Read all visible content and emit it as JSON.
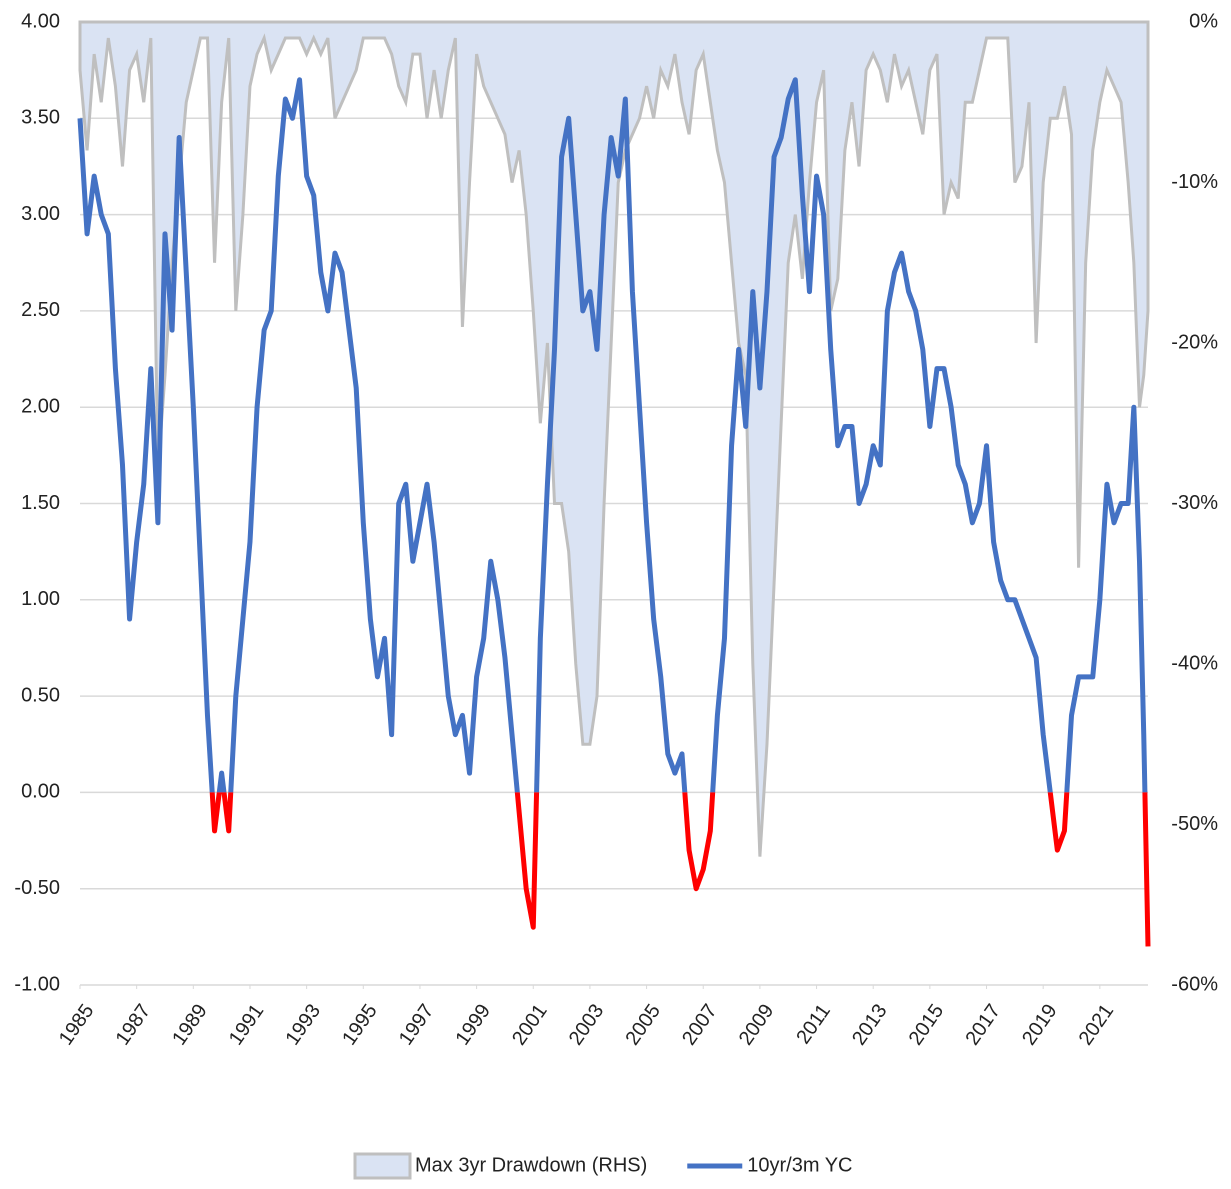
{
  "chart_data": {
    "type": "line",
    "x": [
      1985,
      1985.25,
      1985.5,
      1985.75,
      1986,
      1986.25,
      1986.5,
      1986.75,
      1987,
      1987.25,
      1987.5,
      1987.75,
      1988,
      1988.25,
      1988.5,
      1988.75,
      1989,
      1989.25,
      1989.5,
      1989.75,
      1990,
      1990.25,
      1990.5,
      1990.75,
      1991,
      1991.25,
      1991.5,
      1991.75,
      1992,
      1992.25,
      1992.5,
      1992.75,
      1993,
      1993.25,
      1993.5,
      1993.75,
      1994,
      1994.25,
      1994.5,
      1994.75,
      1995,
      1995.25,
      1995.5,
      1995.75,
      1996,
      1996.25,
      1996.5,
      1996.75,
      1997,
      1997.25,
      1997.5,
      1997.75,
      1998,
      1998.25,
      1998.5,
      1998.75,
      1999,
      1999.25,
      1999.5,
      1999.75,
      2000,
      2000.25,
      2000.5,
      2000.75,
      2001,
      2001.25,
      2001.5,
      2001.75,
      2002,
      2002.25,
      2002.5,
      2002.75,
      2003,
      2003.25,
      2003.5,
      2003.75,
      2004,
      2004.25,
      2004.5,
      2004.75,
      2005,
      2005.25,
      2005.5,
      2005.75,
      2006,
      2006.25,
      2006.5,
      2006.75,
      2007,
      2007.25,
      2007.5,
      2007.75,
      2008,
      2008.25,
      2008.5,
      2008.75,
      2009,
      2009.25,
      2009.5,
      2009.75,
      2010,
      2010.25,
      2010.5,
      2010.75,
      2011,
      2011.25,
      2011.5,
      2011.75,
      2012,
      2012.25,
      2012.5,
      2012.75,
      2013,
      2013.25,
      2013.5,
      2013.75,
      2014,
      2014.25,
      2014.5,
      2014.75,
      2015,
      2015.25,
      2015.5,
      2015.75,
      2016,
      2016.25,
      2016.5,
      2016.75,
      2017,
      2017.25,
      2017.5,
      2017.75,
      2018,
      2018.25,
      2018.5,
      2018.75,
      2019,
      2019.25,
      2019.5,
      2019.75,
      2020,
      2020.25,
      2020.5,
      2020.75,
      2021,
      2021.25,
      2021.5,
      2021.75,
      2022,
      2022.2,
      2022.4,
      2022.55,
      2022.7
    ],
    "series": [
      {
        "name": "Max 3yr Drawdown (RHS)",
        "axis": "y2",
        "kind": "area",
        "color": "#dae3f3",
        "stroke": "#bfbfbf",
        "values": [
          -3,
          -8,
          -2,
          -5,
          -1,
          -4,
          -9,
          -3,
          -2,
          -5,
          -1,
          -28,
          -22,
          -15,
          -10,
          -5,
          -3,
          -1,
          -1,
          -15,
          -5,
          -1,
          -18,
          -12,
          -4,
          -2,
          -1,
          -3,
          -2,
          -1,
          -1,
          -1,
          -2,
          -1,
          -2,
          -1,
          -6,
          -5,
          -4,
          -3,
          -1,
          -1,
          -1,
          -1,
          -2,
          -4,
          -5,
          -2,
          -2,
          -6,
          -3,
          -6,
          -3,
          -1,
          -19,
          -10,
          -2,
          -4,
          -5,
          -6,
          -7,
          -10,
          -8,
          -12,
          -18,
          -25,
          -20,
          -30,
          -30,
          -33,
          -40,
          -45,
          -45,
          -42,
          -30,
          -20,
          -10,
          -8,
          -7,
          -6,
          -4,
          -6,
          -3,
          -4,
          -2,
          -5,
          -7,
          -3,
          -2,
          -5,
          -8,
          -10,
          -15,
          -20,
          -22,
          -40,
          -52,
          -45,
          -35,
          -25,
          -15,
          -12,
          -16,
          -10,
          -5,
          -3,
          -18,
          -16,
          -8,
          -5,
          -9,
          -3,
          -2,
          -3,
          -5,
          -2,
          -4,
          -3,
          -5,
          -7,
          -3,
          -2,
          -12,
          -10,
          -11,
          -5,
          -5,
          -3,
          -1,
          -1,
          -1,
          -1,
          -10,
          -9,
          -5,
          -20,
          -10,
          -6,
          -6,
          -4,
          -7,
          -34,
          -15,
          -8,
          -5,
          -3,
          -4,
          -5,
          -10,
          -15,
          -24,
          -22,
          -18
        ]
      },
      {
        "name": "10yr/3m YC",
        "axis": "y",
        "kind": "line",
        "color": "#4472c4",
        "negative_color": "#ff0000",
        "values": [
          3.5,
          2.9,
          3.2,
          3.0,
          2.9,
          2.2,
          1.7,
          0.9,
          1.3,
          1.6,
          2.2,
          1.4,
          2.9,
          2.4,
          3.4,
          2.7,
          2.0,
          1.2,
          0.4,
          -0.2,
          0.1,
          -0.2,
          0.5,
          0.9,
          1.3,
          2.0,
          2.4,
          2.5,
          3.2,
          3.6,
          3.5,
          3.7,
          3.2,
          3.1,
          2.7,
          2.5,
          2.8,
          2.7,
          2.4,
          2.1,
          1.4,
          0.9,
          0.6,
          0.8,
          0.3,
          1.5,
          1.6,
          1.2,
          1.4,
          1.6,
          1.3,
          0.9,
          0.5,
          0.3,
          0.4,
          0.1,
          0.6,
          0.8,
          1.2,
          1.0,
          0.7,
          0.3,
          -0.1,
          -0.5,
          -0.7,
          0.8,
          1.6,
          2.3,
          3.3,
          3.5,
          3.0,
          2.5,
          2.6,
          2.3,
          3.0,
          3.4,
          3.2,
          3.6,
          2.6,
          2.0,
          1.4,
          0.9,
          0.6,
          0.2,
          0.1,
          0.2,
          -0.3,
          -0.5,
          -0.4,
          -0.2,
          0.4,
          0.8,
          1.8,
          2.3,
          1.9,
          2.6,
          2.1,
          2.6,
          3.3,
          3.4,
          3.6,
          3.7,
          3.1,
          2.6,
          3.2,
          3.0,
          2.3,
          1.8,
          1.9,
          1.9,
          1.5,
          1.6,
          1.8,
          1.7,
          2.5,
          2.7,
          2.8,
          2.6,
          2.5,
          2.3,
          1.9,
          2.2,
          2.2,
          2.0,
          1.7,
          1.6,
          1.4,
          1.5,
          1.8,
          1.3,
          1.1,
          1.0,
          1.0,
          0.9,
          0.8,
          0.7,
          0.3,
          0.0,
          -0.3,
          -0.2,
          0.4,
          0.6,
          0.6,
          0.6,
          1.0,
          1.6,
          1.4,
          1.5,
          1.5,
          2.0,
          1.2,
          0.3,
          -0.8
        ]
      }
    ],
    "xlim": [
      1985,
      2022.7
    ],
    "xticks": [
      1985,
      1987,
      1989,
      1991,
      1993,
      1995,
      1997,
      1999,
      2001,
      2003,
      2005,
      2007,
      2009,
      2011,
      2013,
      2015,
      2017,
      2019,
      2021
    ],
    "ylim": [
      -1,
      4
    ],
    "yticks": [
      {
        "value": 4,
        "label": "4.00"
      },
      {
        "value": 3.5,
        "label": "3.50"
      },
      {
        "value": 3,
        "label": "3.00"
      },
      {
        "value": 2.5,
        "label": "2.50"
      },
      {
        "value": 2,
        "label": "2.00"
      },
      {
        "value": 1.5,
        "label": "1.50"
      },
      {
        "value": 1,
        "label": "1.00"
      },
      {
        "value": 0.5,
        "label": "0.50"
      },
      {
        "value": 0,
        "label": "0.00"
      },
      {
        "value": -0.5,
        "label": "-0.50"
      },
      {
        "value": -1,
        "label": "-1.00"
      }
    ],
    "y2lim": [
      -60,
      0
    ],
    "y2ticks": [
      {
        "value": 0,
        "label": "0%"
      },
      {
        "value": -10,
        "label": "-10%"
      },
      {
        "value": -20,
        "label": "-20%"
      },
      {
        "value": -30,
        "label": "-30%"
      },
      {
        "value": -40,
        "label": "-40%"
      },
      {
        "value": -50,
        "label": "-50%"
      },
      {
        "value": -60,
        "label": "-60%"
      }
    ],
    "grid": true,
    "legend": "bottom"
  }
}
